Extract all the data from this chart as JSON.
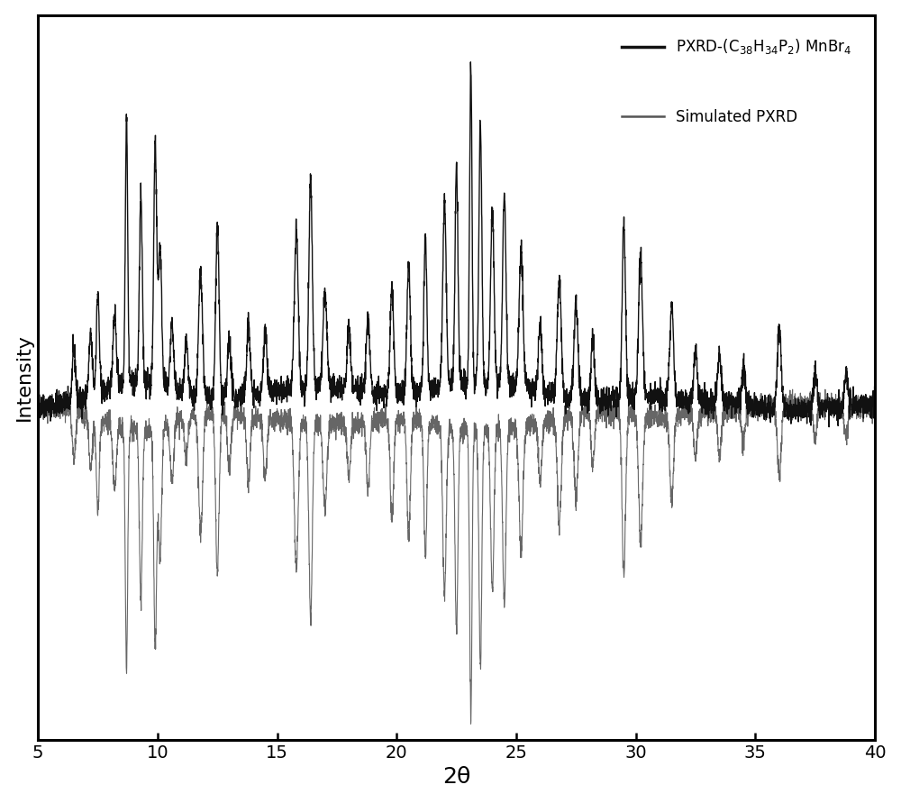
{
  "title": "",
  "xlabel": "2θ",
  "ylabel": "Intensity",
  "xlim": [
    5,
    40
  ],
  "xticks": [
    5,
    10,
    15,
    20,
    25,
    30,
    35,
    40
  ],
  "exp_color": "#111111",
  "sim_color": "#555555",
  "background_color": "#ffffff",
  "xlabel_fontsize": 18,
  "ylabel_fontsize": 16,
  "tick_fontsize": 14,
  "legend_fontsize": 12,
  "linewidth_exp": 1.0,
  "linewidth_sim": 0.8,
  "exp_peaks": [
    7.5,
    8.7,
    9.3,
    9.9,
    10.1,
    11.8,
    12.5,
    15.8,
    16.4,
    17.0,
    19.8,
    20.5,
    21.2,
    22.0,
    22.5,
    23.1,
    23.5,
    24.0,
    24.5,
    25.2,
    26.8,
    27.5,
    29.5,
    30.2,
    31.5,
    36.0
  ],
  "exp_heights": [
    0.3,
    0.8,
    0.55,
    0.72,
    0.42,
    0.38,
    0.52,
    0.48,
    0.62,
    0.28,
    0.32,
    0.38,
    0.45,
    0.55,
    0.65,
    0.95,
    0.78,
    0.52,
    0.58,
    0.42,
    0.35,
    0.28,
    0.52,
    0.42,
    0.28,
    0.25
  ],
  "exp_widths": [
    0.06,
    0.05,
    0.06,
    0.06,
    0.07,
    0.08,
    0.07,
    0.08,
    0.07,
    0.08,
    0.07,
    0.07,
    0.06,
    0.07,
    0.06,
    0.05,
    0.06,
    0.07,
    0.07,
    0.08,
    0.08,
    0.08,
    0.07,
    0.08,
    0.08,
    0.08
  ],
  "sim_peaks": [
    7.5,
    8.7,
    9.3,
    9.9,
    10.1,
    11.8,
    12.5,
    15.8,
    16.4,
    17.0,
    19.8,
    20.5,
    21.2,
    22.0,
    22.5,
    23.1,
    23.5,
    24.0,
    24.5,
    25.2,
    26.8,
    27.5,
    29.5,
    30.2,
    31.5,
    36.0
  ],
  "sim_heights": [
    0.28,
    0.72,
    0.5,
    0.65,
    0.38,
    0.35,
    0.48,
    0.44,
    0.57,
    0.25,
    0.3,
    0.35,
    0.4,
    0.5,
    0.6,
    0.85,
    0.7,
    0.48,
    0.52,
    0.38,
    0.32,
    0.25,
    0.48,
    0.38,
    0.25,
    0.22
  ],
  "sim_widths": [
    0.06,
    0.05,
    0.06,
    0.06,
    0.07,
    0.08,
    0.07,
    0.08,
    0.07,
    0.08,
    0.07,
    0.07,
    0.06,
    0.07,
    0.06,
    0.05,
    0.06,
    0.07,
    0.07,
    0.08,
    0.08,
    0.08,
    0.07,
    0.08,
    0.08,
    0.08
  ]
}
